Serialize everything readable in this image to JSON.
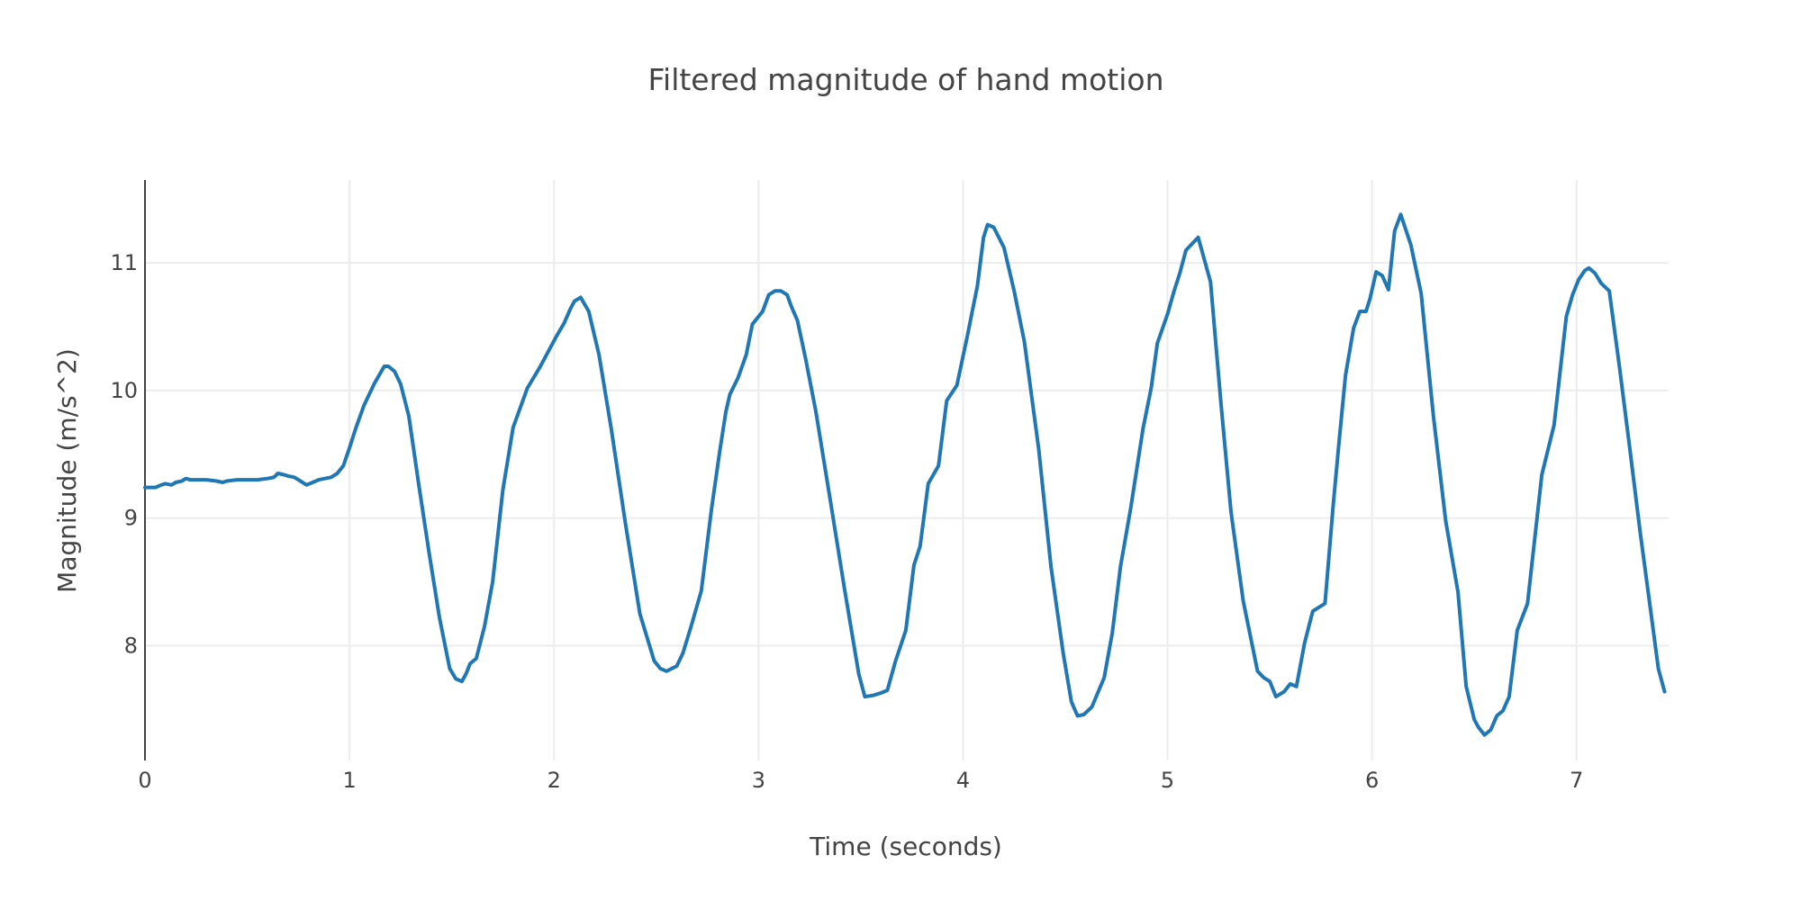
{
  "chart_data": {
    "type": "line",
    "title": "Filtered magnitude of hand motion",
    "xlabel": "Time (seconds)",
    "ylabel": "Magnitude (m/s^2)",
    "xlim": [
      0,
      7.45
    ],
    "ylim": [
      7.1,
      11.65
    ],
    "xticks": [
      0,
      1,
      2,
      3,
      4,
      5,
      6,
      7
    ],
    "yticks": [
      8,
      9,
      10,
      11
    ],
    "grid": true,
    "legend": "none",
    "series": [
      {
        "color": "#1f77b4",
        "x": [
          0.0,
          0.05,
          0.08,
          0.1,
          0.13,
          0.15,
          0.18,
          0.2,
          0.22,
          0.25,
          0.3,
          0.35,
          0.38,
          0.4,
          0.45,
          0.5,
          0.55,
          0.6,
          0.63,
          0.65,
          0.68,
          0.7,
          0.73,
          0.76,
          0.79,
          0.82,
          0.85,
          0.88,
          0.91,
          0.94,
          0.97,
          1.0,
          1.03,
          1.07,
          1.12,
          1.17,
          1.19,
          1.22,
          1.25,
          1.29,
          1.34,
          1.39,
          1.44,
          1.49,
          1.52,
          1.55,
          1.57,
          1.59,
          1.62,
          1.66,
          1.7,
          1.75,
          1.8,
          1.87,
          1.93,
          1.97,
          2.01,
          2.05,
          2.08,
          2.1,
          2.13,
          2.17,
          2.22,
          2.28,
          2.35,
          2.42,
          2.49,
          2.52,
          2.55,
          2.6,
          2.63,
          2.67,
          2.72,
          2.77,
          2.81,
          2.84,
          2.86,
          2.9,
          2.94,
          2.97,
          3.02,
          3.05,
          3.08,
          3.11,
          3.14,
          3.16,
          3.19,
          3.23,
          3.28,
          3.35,
          3.42,
          3.49,
          3.52,
          3.56,
          3.6,
          3.63,
          3.67,
          3.72,
          3.76,
          3.79,
          3.83,
          3.88,
          3.92,
          3.97,
          4.02,
          4.07,
          4.1,
          4.12,
          4.15,
          4.2,
          4.25,
          4.3,
          4.37,
          4.43,
          4.49,
          4.53,
          4.56,
          4.59,
          4.63,
          4.69,
          4.73,
          4.77,
          4.82,
          4.88,
          4.92,
          4.95,
          5.0,
          5.03,
          5.06,
          5.09,
          5.12,
          5.15,
          5.21,
          5.26,
          5.31,
          5.37,
          5.44,
          5.47,
          5.5,
          5.53,
          5.57,
          5.6,
          5.63,
          5.67,
          5.71,
          5.77,
          5.81,
          5.84,
          5.87,
          5.91,
          5.94,
          5.97,
          5.99,
          6.02,
          6.05,
          6.08,
          6.11,
          6.14,
          6.19,
          6.24,
          6.3,
          6.36,
          6.42,
          6.46,
          6.5,
          6.52,
          6.55,
          6.58,
          6.61,
          6.64,
          6.67,
          6.71,
          6.76,
          6.83,
          6.89,
          6.95,
          6.98,
          7.01,
          7.04,
          7.06,
          7.09,
          7.12,
          7.16,
          7.21,
          7.26,
          7.31,
          7.35,
          7.4,
          7.43
        ],
        "y": [
          9.24,
          9.24,
          9.26,
          9.27,
          9.26,
          9.28,
          9.29,
          9.31,
          9.3,
          9.3,
          9.3,
          9.29,
          9.28,
          9.29,
          9.3,
          9.3,
          9.3,
          9.31,
          9.32,
          9.35,
          9.34,
          9.33,
          9.32,
          9.29,
          9.26,
          9.28,
          9.3,
          9.31,
          9.32,
          9.35,
          9.41,
          9.55,
          9.7,
          9.88,
          10.05,
          10.19,
          10.19,
          10.15,
          10.05,
          9.8,
          9.25,
          8.72,
          8.22,
          7.82,
          7.74,
          7.72,
          7.78,
          7.86,
          7.9,
          8.15,
          8.5,
          9.22,
          9.71,
          10.02,
          10.18,
          10.3,
          10.42,
          10.53,
          10.64,
          10.7,
          10.73,
          10.62,
          10.28,
          9.7,
          8.95,
          8.25,
          7.88,
          7.82,
          7.8,
          7.84,
          7.94,
          8.15,
          8.43,
          9.07,
          9.52,
          9.83,
          9.97,
          10.1,
          10.28,
          10.52,
          10.62,
          10.75,
          10.78,
          10.78,
          10.75,
          10.66,
          10.55,
          10.25,
          9.84,
          9.15,
          8.45,
          7.78,
          7.6,
          7.61,
          7.63,
          7.65,
          7.88,
          8.12,
          8.63,
          8.78,
          9.27,
          9.41,
          9.92,
          10.04,
          10.42,
          10.82,
          11.2,
          11.3,
          11.28,
          11.12,
          10.78,
          10.38,
          9.54,
          8.62,
          7.94,
          7.56,
          7.45,
          7.46,
          7.52,
          7.75,
          8.1,
          8.62,
          9.08,
          9.7,
          10.02,
          10.37,
          10.6,
          10.77,
          10.92,
          11.1,
          11.15,
          11.2,
          10.85,
          9.92,
          9.05,
          8.35,
          7.8,
          7.75,
          7.72,
          7.6,
          7.64,
          7.7,
          7.68,
          8.02,
          8.27,
          8.33,
          9.1,
          9.62,
          10.12,
          10.49,
          10.62,
          10.62,
          10.72,
          10.93,
          10.9,
          10.79,
          11.25,
          11.38,
          11.14,
          10.76,
          9.8,
          8.98,
          8.42,
          7.68,
          7.42,
          7.36,
          7.3,
          7.34,
          7.45,
          7.49,
          7.6,
          8.12,
          8.33,
          9.34,
          9.73,
          10.58,
          10.75,
          10.87,
          10.94,
          10.96,
          10.92,
          10.84,
          10.78,
          10.18,
          9.55,
          8.9,
          8.42,
          7.82,
          7.64
        ]
      }
    ]
  }
}
